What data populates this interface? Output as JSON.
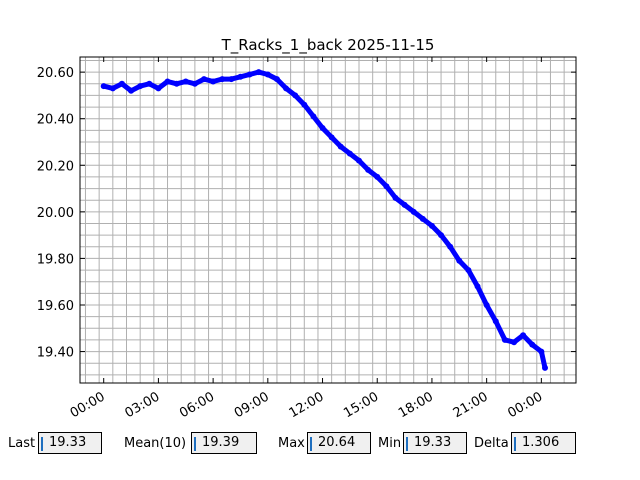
{
  "chart_data": {
    "type": "scatter",
    "title": "T_Racks_1_back 2025-11-15",
    "xlabel": "",
    "ylabel": "",
    "x_unit": "hours since 00:00",
    "xlim": [
      -1.3,
      25.9
    ],
    "ylim": [
      19.265,
      20.665
    ],
    "xticks": [
      "00:00",
      "03:00",
      "06:00",
      "09:00",
      "12:00",
      "15:00",
      "18:00",
      "21:00",
      "00:00"
    ],
    "yticks": [
      "19.40",
      "19.60",
      "19.80",
      "20.00",
      "20.20",
      "20.40",
      "20.60"
    ],
    "grid": true,
    "marker_color": "#0000ff",
    "line_color": "#0000ff",
    "series": [
      {
        "name": "",
        "x": [
          0,
          0.5,
          1,
          1.5,
          2,
          2.5,
          3,
          3.5,
          4,
          4.5,
          5,
          5.5,
          6,
          6.5,
          7,
          7.5,
          8,
          8.5,
          9,
          9.5,
          10,
          10.5,
          11,
          11.5,
          12,
          12.5,
          13,
          13.5,
          14,
          14.5,
          15,
          15.5,
          16,
          16.5,
          17,
          17.5,
          18,
          18.5,
          19,
          19.5,
          20,
          20.5,
          21,
          21.5,
          22,
          22.5,
          23,
          23.5,
          24,
          24.2
        ],
        "y": [
          20.54,
          20.53,
          20.55,
          20.52,
          20.54,
          20.55,
          20.53,
          20.56,
          20.55,
          20.56,
          20.55,
          20.57,
          20.56,
          20.57,
          20.57,
          20.58,
          20.59,
          20.6,
          20.59,
          20.57,
          20.53,
          20.5,
          20.46,
          20.41,
          20.36,
          20.32,
          20.28,
          20.25,
          20.22,
          20.18,
          20.15,
          20.11,
          20.06,
          20.03,
          20.0,
          19.97,
          19.94,
          19.9,
          19.85,
          19.79,
          19.75,
          19.68,
          19.6,
          19.53,
          19.45,
          19.44,
          19.47,
          19.43,
          19.4,
          19.33
        ]
      }
    ]
  },
  "stats": {
    "last_label": "Last",
    "last_value": "19.33",
    "mean_label": "Mean(10)",
    "mean_value": "19.39",
    "max_label": "Max",
    "max_value": "20.64",
    "min_label": "Min",
    "min_value": "19.33",
    "delta_label": "Delta",
    "delta_value": "1.306"
  }
}
